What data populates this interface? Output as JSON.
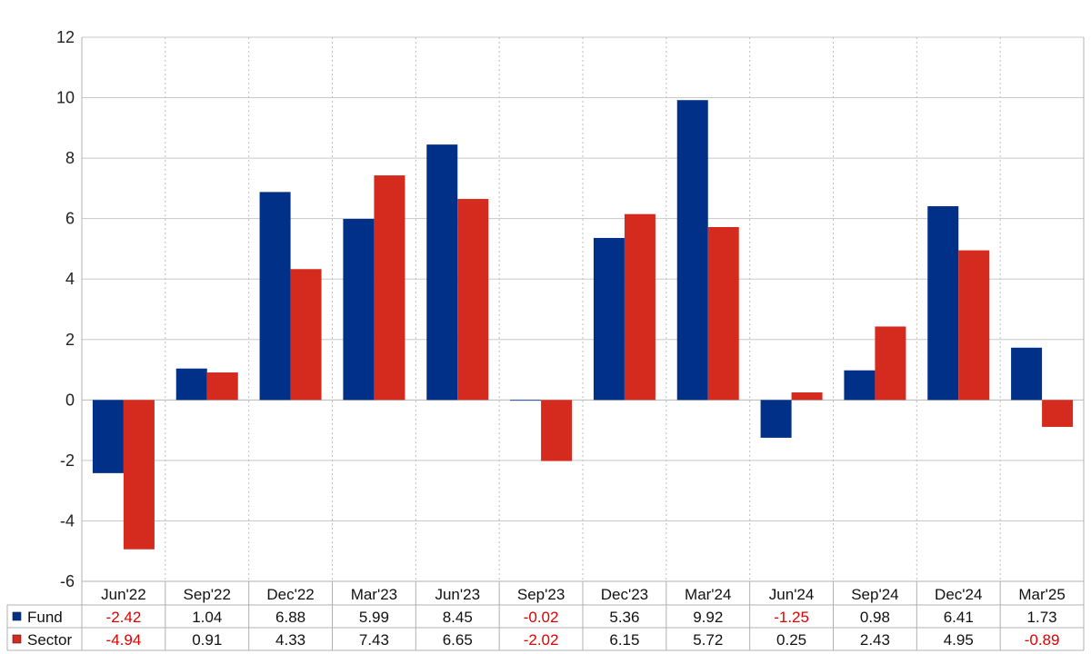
{
  "chart_data": {
    "type": "bar",
    "title": "",
    "xlabel": "",
    "ylabel": "",
    "ylim": [
      -6,
      12
    ],
    "yticks": [
      -6,
      -4,
      -2,
      0,
      2,
      4,
      6,
      8,
      10,
      12
    ],
    "grid": true,
    "legend": "data-table-below",
    "categories": [
      "Jun'22",
      "Sep'22",
      "Dec'22",
      "Mar'23",
      "Jun'23",
      "Sep'23",
      "Dec'23",
      "Mar'24",
      "Jun'24",
      "Sep'24",
      "Dec'24",
      "Mar'25"
    ],
    "series": [
      {
        "name": "Fund",
        "color": "#003087",
        "values": [
          -2.42,
          1.04,
          6.88,
          5.99,
          8.45,
          -0.02,
          5.36,
          9.92,
          -1.25,
          0.98,
          6.41,
          1.73
        ],
        "labels": [
          "-2.42",
          "1.04",
          "6.88",
          "5.99",
          "8.45",
          "-0.02",
          "5.36",
          "9.92",
          "-1.25",
          "0.98",
          "6.41",
          "1.73"
        ]
      },
      {
        "name": "Sector",
        "color": "#d52b1e",
        "values": [
          -4.94,
          0.91,
          4.33,
          7.43,
          6.65,
          -2.02,
          6.15,
          5.72,
          0.25,
          2.43,
          4.95,
          -0.89
        ],
        "labels": [
          "-4.94",
          "0.91",
          "4.33",
          "7.43",
          "6.65",
          "-2.02",
          "6.15",
          "5.72",
          "0.25",
          "2.43",
          "4.95",
          "-0.89"
        ]
      }
    ],
    "negative_value_color": "#e00000",
    "positive_value_color": "#111111"
  }
}
